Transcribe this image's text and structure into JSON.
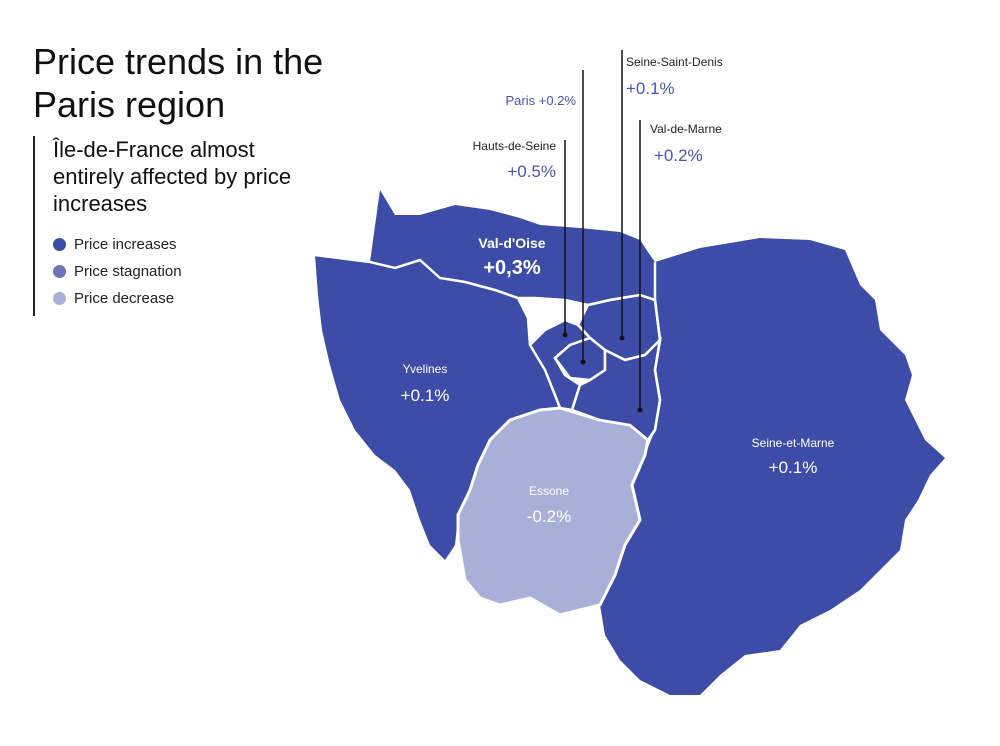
{
  "title": "Price trends in the Paris region",
  "subtitle": "Île-de-France almost entirely affected by price increases",
  "legend": [
    {
      "label": "Price increases",
      "color": "#3D4CA6"
    },
    {
      "label": "Price stagnation",
      "color": "#6B74B8"
    },
    {
      "label": "Price decrease",
      "color": "#A9B0D8"
    }
  ],
  "regions": {
    "val_doise": {
      "name": "Val-d'Oise",
      "value": "+0,3%"
    },
    "yvelines": {
      "name": "Yvelines",
      "value": "+0.1%"
    },
    "essone": {
      "name": "Essone",
      "value": "-0.2%"
    },
    "seine_et_marne": {
      "name": "Seine-et-Marne",
      "value": "+0.1%"
    },
    "paris": {
      "name": "Paris",
      "value": "+0.2%"
    },
    "hauts_de_seine": {
      "name": "Hauts-de-Seine",
      "value": "+0.5%"
    },
    "seine_saint_denis": {
      "name": "Seine-Saint-Denis",
      "value": "+0.1%"
    },
    "val_de_marne": {
      "name": "Val-de-Marne",
      "value": "+0.2%"
    }
  },
  "colors": {
    "increase": "#3D4CA6",
    "decrease": "#A9B0D8",
    "callout_text": "#4A55A8"
  }
}
